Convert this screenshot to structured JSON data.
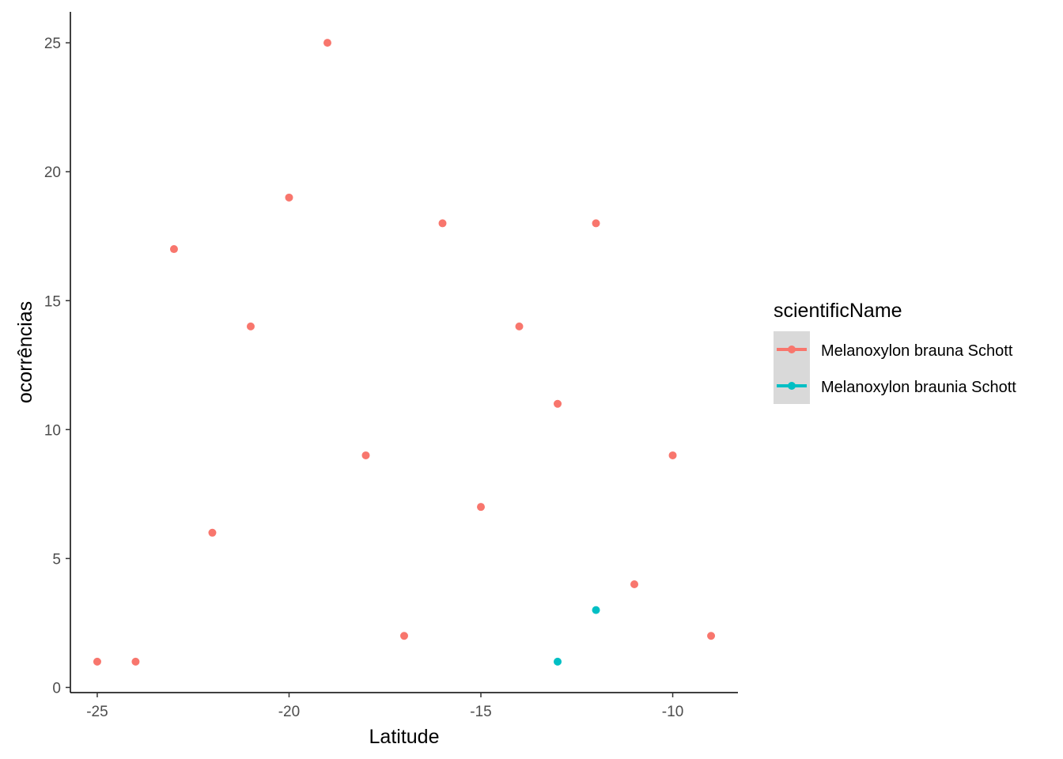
{
  "chart_data": {
    "type": "scatter",
    "xlabel": "Latitude",
    "ylabel": "ocorrências",
    "xlim": [
      -25.7,
      -8.3
    ],
    "ylim": [
      -0.2,
      26.2
    ],
    "xticks": [
      -25,
      -20,
      -15,
      -10
    ],
    "yticks": [
      0,
      5,
      10,
      15,
      20,
      25
    ],
    "xtick_labels": [
      "-25",
      "-20",
      "-15",
      "-10"
    ],
    "ytick_labels": [
      "0",
      "5",
      "10",
      "15",
      "20",
      "25"
    ],
    "grid": false,
    "legend": {
      "title": "scientificName",
      "position": "right"
    },
    "series": [
      {
        "name": "Melanoxylon brauna Schott",
        "color": "#F8766D",
        "points": [
          {
            "x": -25,
            "y": 1
          },
          {
            "x": -24,
            "y": 1
          },
          {
            "x": -23,
            "y": 17
          },
          {
            "x": -22,
            "y": 6
          },
          {
            "x": -21,
            "y": 14
          },
          {
            "x": -20,
            "y": 19
          },
          {
            "x": -19,
            "y": 25
          },
          {
            "x": -18,
            "y": 9
          },
          {
            "x": -17,
            "y": 2
          },
          {
            "x": -16,
            "y": 18
          },
          {
            "x": -15,
            "y": 7
          },
          {
            "x": -14,
            "y": 14
          },
          {
            "x": -13,
            "y": 11
          },
          {
            "x": -12,
            "y": 18
          },
          {
            "x": -11,
            "y": 4
          },
          {
            "x": -10,
            "y": 9
          },
          {
            "x": -9,
            "y": 2
          }
        ]
      },
      {
        "name": "Melanoxylon braunia Schott",
        "color": "#00BFC4",
        "points": [
          {
            "x": -13,
            "y": 1
          },
          {
            "x": -12,
            "y": 3
          }
        ]
      }
    ]
  }
}
